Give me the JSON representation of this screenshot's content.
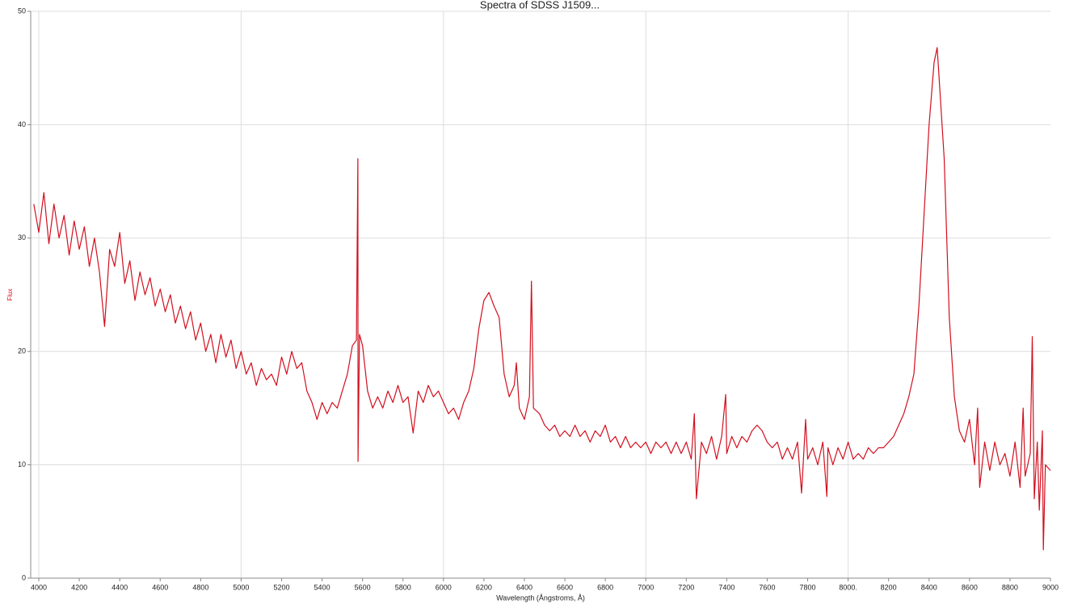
{
  "chart_data": {
    "type": "line",
    "title": "Spectra of SDSS J1509...",
    "x_label": "Wavelength (Ångstroms, Å)",
    "y_label": "Flux",
    "color": "#d20f1e",
    "x": [
      3975,
      4000,
      4025,
      4050,
      4075,
      4100,
      4125,
      4150,
      4175,
      4200,
      4225,
      4250,
      4275,
      4300,
      4325,
      4350,
      4375,
      4400,
      4425,
      4450,
      4475,
      4500,
      4525,
      4550,
      4575,
      4600,
      4625,
      4650,
      4675,
      4700,
      4725,
      4750,
      4775,
      4800,
      4825,
      4850,
      4875,
      4900,
      4925,
      4950,
      4975,
      5000,
      5025,
      5050,
      5075,
      5100,
      5125,
      5150,
      5175,
      5200,
      5225,
      5250,
      5275,
      5300,
      5325,
      5350,
      5375,
      5400,
      5425,
      5450,
      5475,
      5500,
      5525,
      5550,
      5570,
      5577,
      5578,
      5585,
      5600,
      5625,
      5650,
      5675,
      5700,
      5725,
      5750,
      5775,
      5800,
      5825,
      5850,
      5875,
      5900,
      5925,
      5950,
      5975,
      6000,
      6025,
      6050,
      6075,
      6100,
      6125,
      6150,
      6175,
      6200,
      6225,
      6250,
      6275,
      6300,
      6325,
      6350,
      6360,
      6375,
      6400,
      6425,
      6435,
      6445,
      6475,
      6500,
      6525,
      6550,
      6575,
      6600,
      6625,
      6650,
      6675,
      6700,
      6725,
      6750,
      6775,
      6800,
      6825,
      6850,
      6875,
      6900,
      6925,
      6950,
      6975,
      7000,
      7025,
      7050,
      7075,
      7100,
      7125,
      7150,
      7175,
      7200,
      7225,
      7240,
      7250,
      7275,
      7300,
      7325,
      7350,
      7375,
      7395,
      7400,
      7425,
      7450,
      7475,
      7500,
      7525,
      7550,
      7575,
      7600,
      7625,
      7650,
      7675,
      7700,
      7725,
      7750,
      7770,
      7790,
      7800,
      7825,
      7850,
      7875,
      7895,
      7900,
      7925,
      7950,
      7975,
      8000,
      8025,
      8050,
      8075,
      8100,
      8125,
      8150,
      8175,
      8200,
      8225,
      8250,
      8275,
      8300,
      8325,
      8350,
      8375,
      8400,
      8425,
      8440,
      8450,
      8475,
      8500,
      8525,
      8550,
      8575,
      8600,
      8625,
      8640,
      8650,
      8675,
      8700,
      8725,
      8750,
      8775,
      8800,
      8825,
      8850,
      8865,
      8875,
      8900,
      8910,
      8920,
      8935,
      8945,
      8960,
      8965,
      8975,
      9000
    ],
    "values": [
      33,
      30.5,
      34,
      29.5,
      33,
      30,
      32,
      28.5,
      31.5,
      29,
      31,
      27.5,
      30,
      27,
      22.2,
      29,
      27.5,
      30.5,
      26,
      28,
      24.5,
      27,
      25,
      26.5,
      24,
      25.5,
      23.5,
      25,
      22.5,
      24,
      22,
      23.5,
      21,
      22.5,
      20,
      21.5,
      19,
      21.5,
      19.5,
      21,
      18.5,
      20,
      18,
      19,
      17,
      18.5,
      17.5,
      18,
      17,
      19.5,
      18,
      20,
      18.5,
      19,
      16.5,
      15.5,
      14,
      15.5,
      14.5,
      15.5,
      15,
      16.5,
      18,
      20.5,
      21,
      37,
      10.3,
      21.5,
      20.5,
      16.5,
      15,
      16,
      15,
      16.5,
      15.5,
      17,
      15.5,
      16,
      12.8,
      16.5,
      15.5,
      17,
      16,
      16.5,
      15.5,
      14.5,
      15,
      14,
      15.5,
      16.5,
      18.5,
      22,
      24.5,
      25.2,
      24,
      23,
      18,
      16,
      17,
      19,
      15,
      14,
      16,
      26.2,
      15,
      14.5,
      13.5,
      13,
      13.5,
      12.5,
      13,
      12.5,
      13.5,
      12.5,
      13,
      12,
      13,
      12.5,
      13.5,
      12,
      12.5,
      11.5,
      12.5,
      11.5,
      12,
      11.5,
      12,
      11,
      12,
      11.5,
      12,
      11,
      12,
      11,
      12,
      10.5,
      14.5,
      7,
      12,
      11,
      12.5,
      10.5,
      12.5,
      16.2,
      11,
      12.5,
      11.5,
      12.5,
      12,
      13,
      13.5,
      13,
      12,
      11.5,
      12,
      10.5,
      11.5,
      10.5,
      12,
      7.5,
      14,
      10.5,
      11.5,
      10,
      12,
      7.2,
      11.5,
      10,
      11.5,
      10.5,
      12,
      10.5,
      11,
      10.5,
      11.5,
      11,
      11.5,
      11.5,
      12,
      12.5,
      13.5,
      14.5,
      16,
      18,
      24,
      32,
      40,
      45.5,
      46.8,
      44,
      37,
      23,
      16,
      13,
      12,
      14,
      10,
      15,
      8,
      12,
      9.5,
      12,
      10,
      11,
      9,
      12,
      8,
      15,
      9,
      11,
      21.3,
      7,
      12,
      6,
      13,
      2.5,
      10,
      9.5
    ],
    "xlim": [
      3960,
      9000
    ],
    "xticks": [
      4000,
      4200,
      4400,
      4600,
      4800,
      5000,
      5200,
      5400,
      5600,
      5800,
      6000,
      6200,
      6400,
      6600,
      6800,
      7000,
      7200,
      7400,
      7600,
      7800,
      {
        "value": 8000,
        "label": "8000."
      },
      8200,
      8400,
      8600,
      8800,
      9000
    ],
    "ylim": [
      0,
      50
    ],
    "yticks": [
      0,
      10,
      20,
      30,
      40,
      50
    ],
    "grid": true
  }
}
